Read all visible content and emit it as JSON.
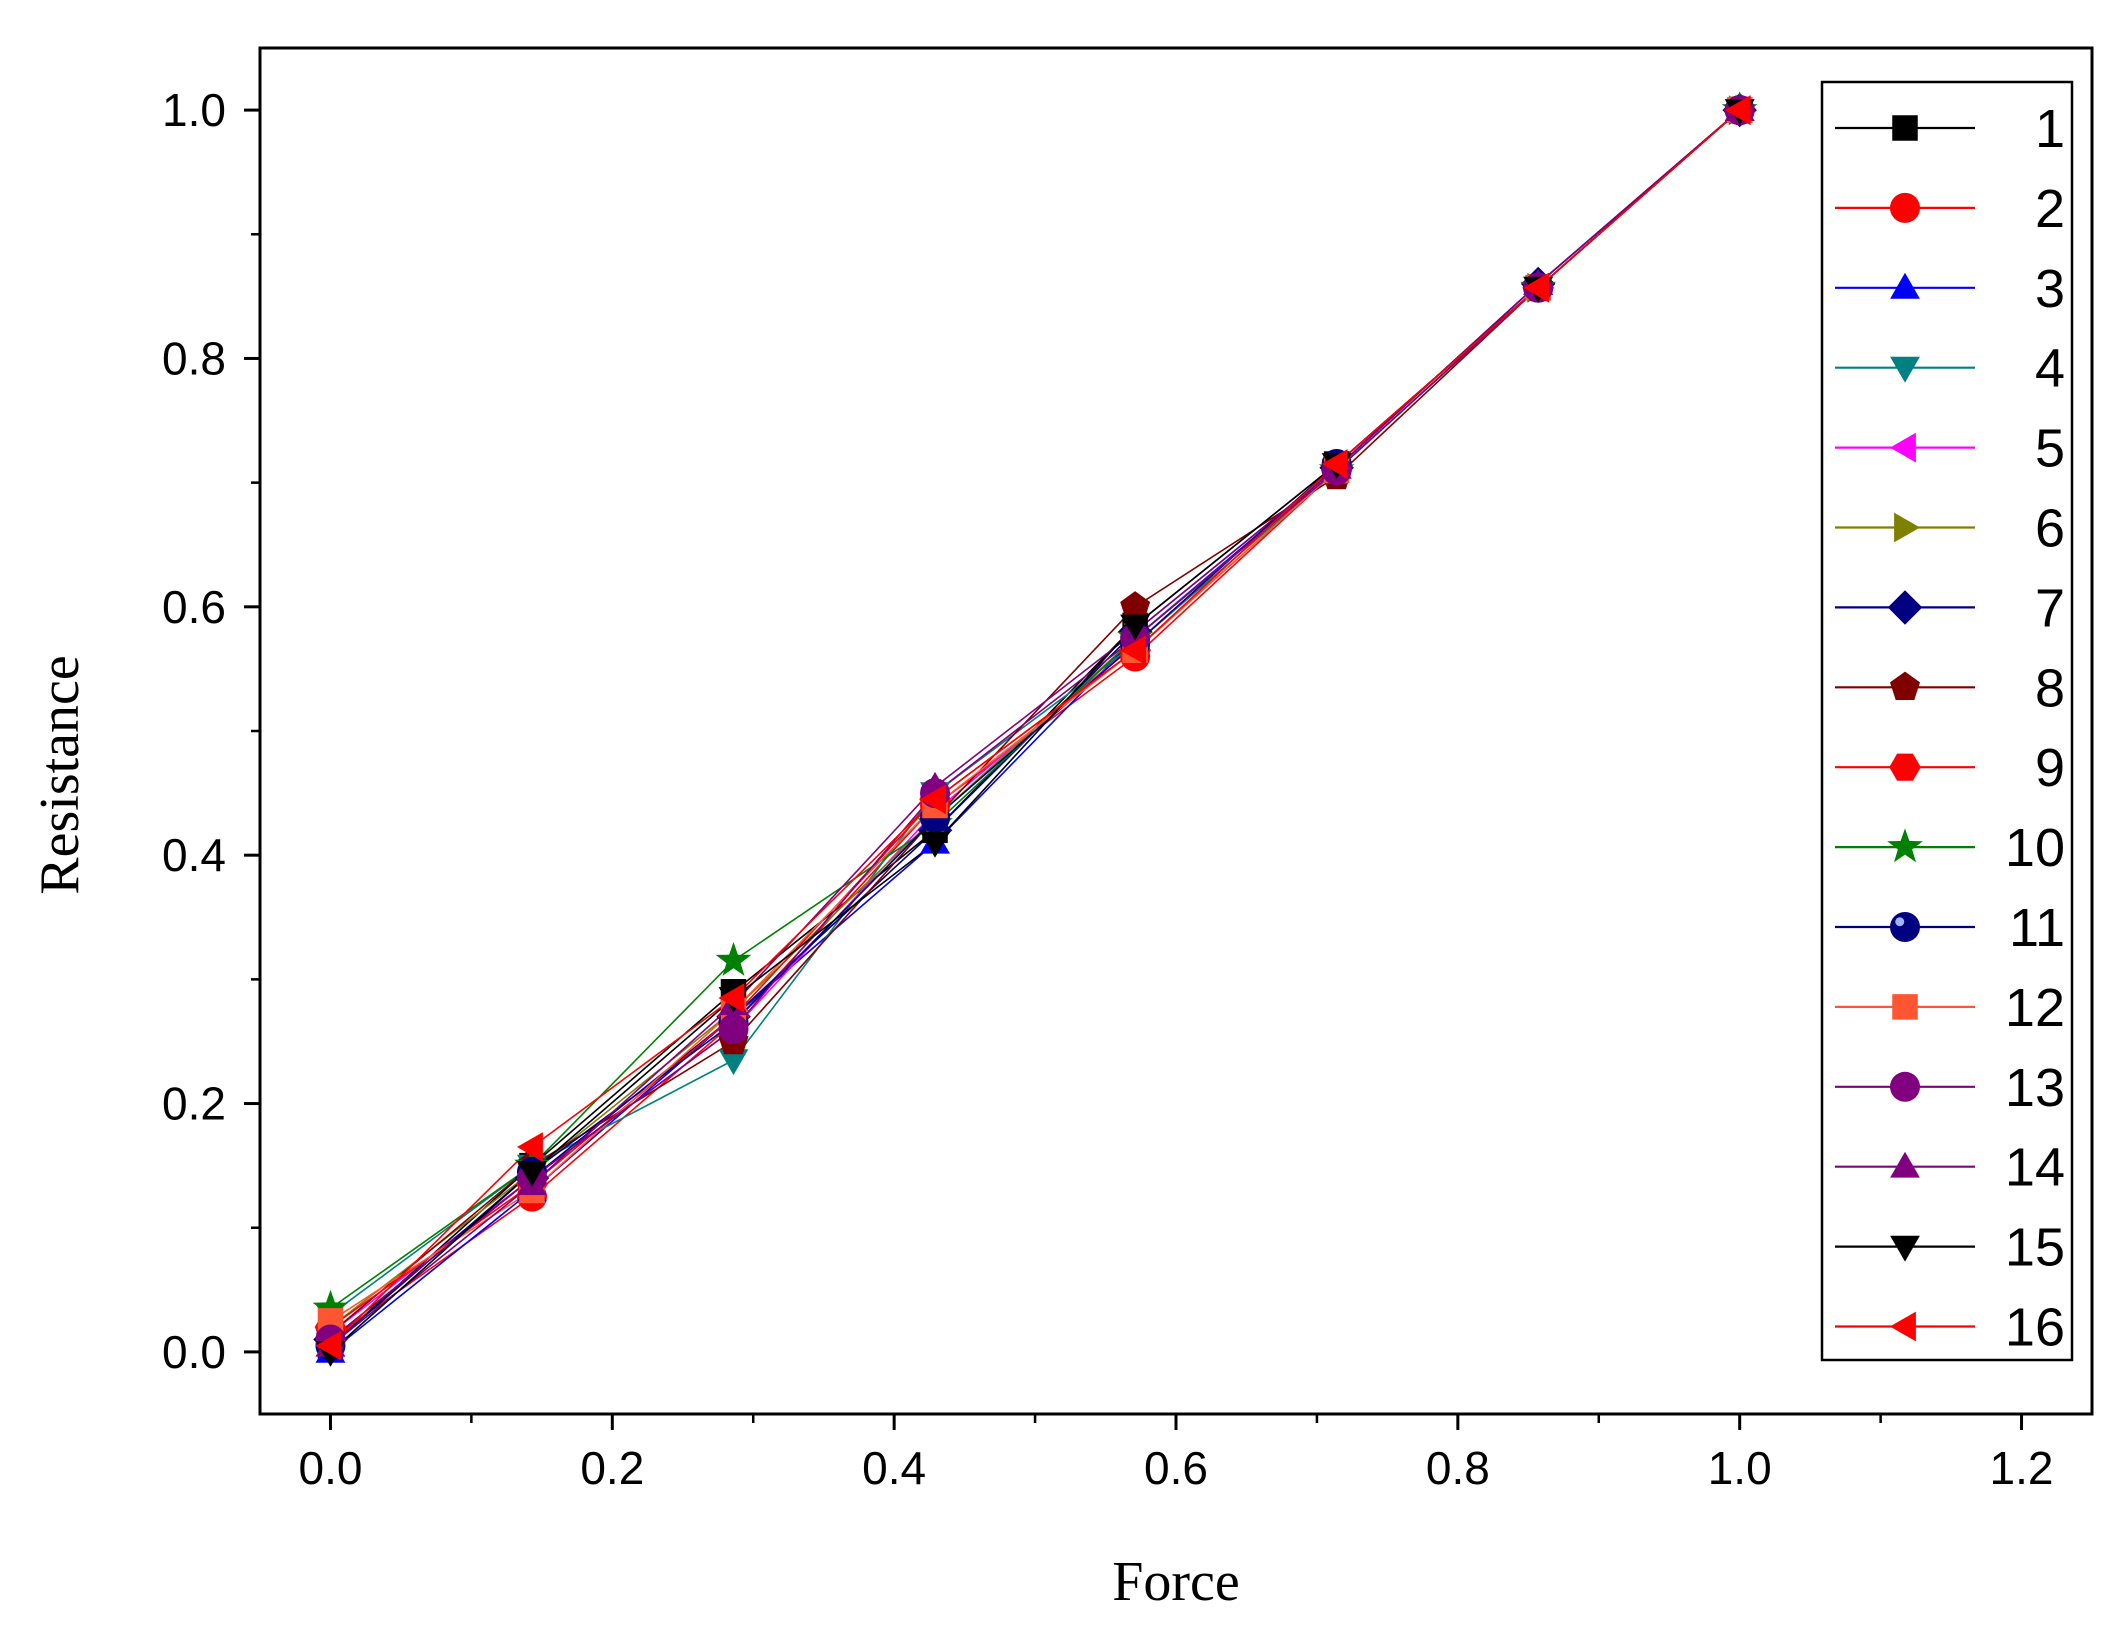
{
  "chart_data": {
    "type": "line",
    "title": "",
    "xlabel": "Force",
    "ylabel": "Resistance",
    "xlim": [
      -0.05,
      1.25
    ],
    "ylim": [
      -0.05,
      1.05
    ],
    "xticks": [
      0.0,
      0.2,
      0.4,
      0.6,
      0.8,
      1.0,
      1.2
    ],
    "xtick_labels": [
      "0.0",
      "0.2",
      "0.4",
      "0.6",
      "0.8",
      "1.0",
      "1.2"
    ],
    "yticks": [
      0.0,
      0.2,
      0.4,
      0.6,
      0.8,
      1.0
    ],
    "ytick_labels": [
      "0.0",
      "0.2",
      "0.4",
      "0.6",
      "0.8",
      "1.0"
    ],
    "grid": false,
    "legend_position": "right",
    "x": [
      0.0,
      0.143,
      0.286,
      0.429,
      0.571,
      0.714,
      0.857,
      1.0
    ],
    "series": [
      {
        "name": "1",
        "color": "#000000",
        "marker": "square",
        "values": [
          0.005,
          0.15,
          0.29,
          0.42,
          0.585,
          0.715,
          0.857,
          1.0
        ]
      },
      {
        "name": "2",
        "color": "#ff0000",
        "marker": "circle",
        "values": [
          0.01,
          0.125,
          0.265,
          0.44,
          0.56,
          0.71,
          0.857,
          1.0
        ]
      },
      {
        "name": "3",
        "color": "#0000ff",
        "marker": "triangle-up",
        "values": [
          0.0,
          0.13,
          0.27,
          0.41,
          0.575,
          0.712,
          0.86,
          1.0
        ]
      },
      {
        "name": "4",
        "color": "#008080",
        "marker": "triangle-down",
        "values": [
          0.03,
          0.15,
          0.235,
          0.45,
          0.57,
          0.71,
          0.857,
          1.0
        ]
      },
      {
        "name": "5",
        "color": "#ff00ff",
        "marker": "triangle-left",
        "values": [
          0.015,
          0.14,
          0.26,
          0.435,
          0.57,
          0.715,
          0.857,
          1.0
        ]
      },
      {
        "name": "6",
        "color": "#808000",
        "marker": "triangle-right",
        "values": [
          0.02,
          0.145,
          0.275,
          0.43,
          0.575,
          0.71,
          0.857,
          1.0
        ]
      },
      {
        "name": "7",
        "color": "#000080",
        "marker": "diamond",
        "values": [
          0.01,
          0.14,
          0.27,
          0.42,
          0.58,
          0.712,
          0.86,
          1.0
        ]
      },
      {
        "name": "8",
        "color": "#800000",
        "marker": "pentagon",
        "values": [
          0.015,
          0.15,
          0.25,
          0.43,
          0.6,
          0.705,
          0.857,
          1.0
        ]
      },
      {
        "name": "9",
        "color": "#ff0000",
        "marker": "hexagon",
        "values": [
          0.02,
          0.135,
          0.27,
          0.445,
          0.565,
          0.71,
          0.857,
          1.0
        ]
      },
      {
        "name": "10",
        "color": "#008000",
        "marker": "star",
        "values": [
          0.035,
          0.15,
          0.315,
          0.425,
          0.575,
          0.71,
          0.857,
          1.0
        ]
      },
      {
        "name": "11",
        "color": "#000080",
        "marker": "sphere",
        "values": [
          0.005,
          0.145,
          0.265,
          0.43,
          0.57,
          0.715,
          0.857,
          1.0
        ]
      },
      {
        "name": "12",
        "color": "#ff5533",
        "marker": "square",
        "values": [
          0.025,
          0.13,
          0.275,
          0.44,
          0.565,
          0.71,
          0.857,
          1.0
        ]
      },
      {
        "name": "13",
        "color": "#800080",
        "marker": "circle",
        "values": [
          0.01,
          0.14,
          0.26,
          0.45,
          0.575,
          0.71,
          0.857,
          1.0
        ]
      },
      {
        "name": "14",
        "color": "#800080",
        "marker": "triangle-up",
        "values": [
          0.005,
          0.135,
          0.28,
          0.455,
          0.58,
          0.712,
          0.86,
          1.0
        ]
      },
      {
        "name": "15",
        "color": "#000000",
        "marker": "triangle-down",
        "values": [
          0.0,
          0.145,
          0.285,
          0.41,
          0.585,
          0.715,
          0.857,
          1.0
        ]
      },
      {
        "name": "16",
        "color": "#ff0000",
        "marker": "triangle-left",
        "values": [
          0.005,
          0.165,
          0.285,
          0.445,
          0.565,
          0.715,
          0.857,
          1.0
        ]
      }
    ]
  }
}
